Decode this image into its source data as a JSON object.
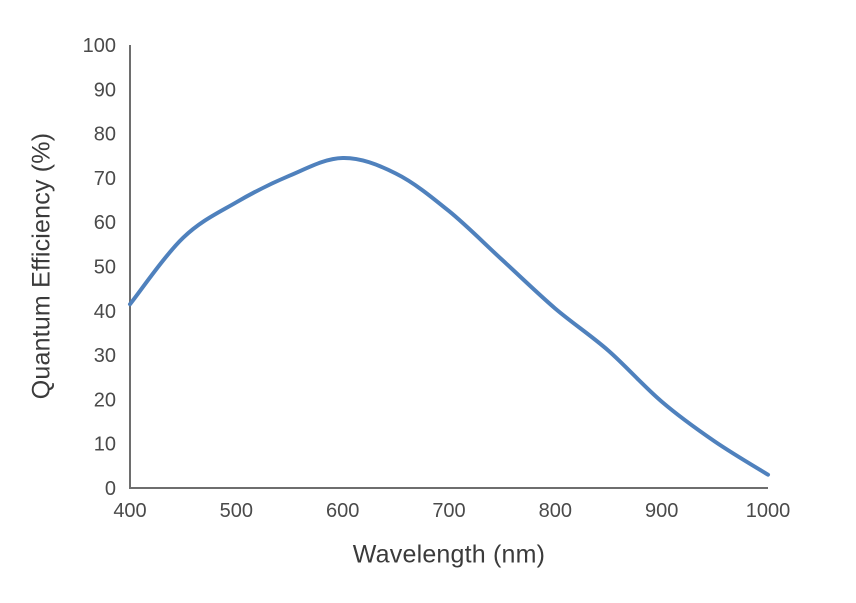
{
  "chart_data": {
    "type": "line",
    "title": "",
    "xlabel": "Wavelength (nm)",
    "ylabel": "Quantum Efficiency (%)",
    "x": [
      400,
      450,
      500,
      550,
      600,
      650,
      700,
      750,
      800,
      850,
      900,
      950,
      1000
    ],
    "series": [
      {
        "name": "Quantum Efficiency",
        "values": [
          41.5,
          56.5,
          64.5,
          70.5,
          74.5,
          71,
          62.5,
          51.5,
          40.5,
          31,
          19.5,
          10.5,
          3
        ]
      }
    ],
    "xlim": [
      400,
      1000
    ],
    "ylim": [
      0,
      100
    ],
    "x_ticks": [
      400,
      500,
      600,
      700,
      800,
      900,
      1000
    ],
    "y_ticks": [
      0,
      10,
      20,
      30,
      40,
      50,
      60,
      70,
      80,
      90,
      100
    ],
    "grid": false,
    "legend": false,
    "line_color": "#4f81bd",
    "axis_color": "#6e6e6e",
    "text_color": "#3b3b3b",
    "background": "#ffffff"
  }
}
